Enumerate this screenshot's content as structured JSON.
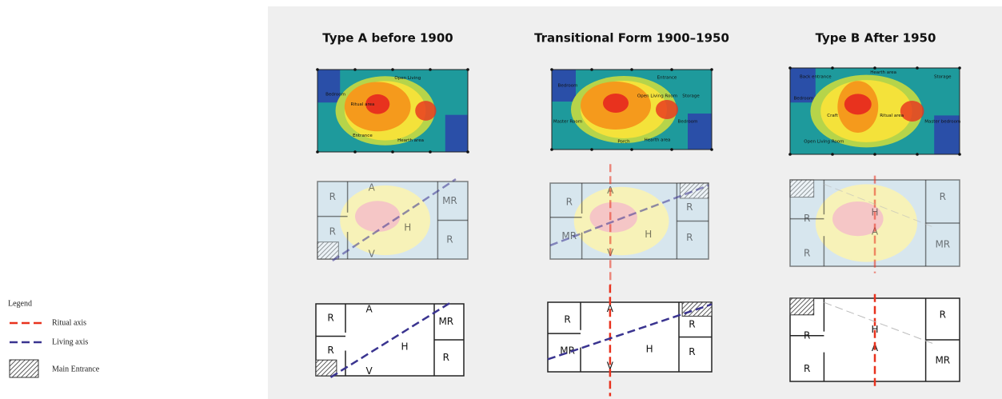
{
  "legend": {
    "title": "Legend",
    "items": [
      "Ritual axis",
      "Living axis",
      "Main Entrance"
    ]
  },
  "columns": [
    {
      "title": "Type A  before 1900",
      "heatmap_labels": [
        "Bedroom",
        "Ritual area",
        "Open Living",
        "Entrance",
        "Hearth area"
      ],
      "rooms": [
        "R",
        "R",
        "MR",
        "R",
        "A",
        "V",
        "H"
      ]
    },
    {
      "title": "Transitional Form  1900–1950",
      "heatmap_labels": [
        "Bedroom",
        "Entrance",
        "Open Living Room",
        "Storage",
        "Master Room",
        "Bedroom",
        "Porch",
        "Hearth area"
      ],
      "rooms": [
        "R",
        "MR",
        "R",
        "R",
        "A",
        "V",
        "H"
      ]
    },
    {
      "title": "Type B  After 1950",
      "heatmap_labels": [
        "Back entrance",
        "Hearth area",
        "Storage",
        "Bedroom",
        "Craft",
        "Ritual area",
        "Master bedroom",
        "Open Living Room"
      ],
      "rooms": [
        "R",
        "R",
        "R",
        "MR",
        "H",
        "A"
      ]
    }
  ]
}
